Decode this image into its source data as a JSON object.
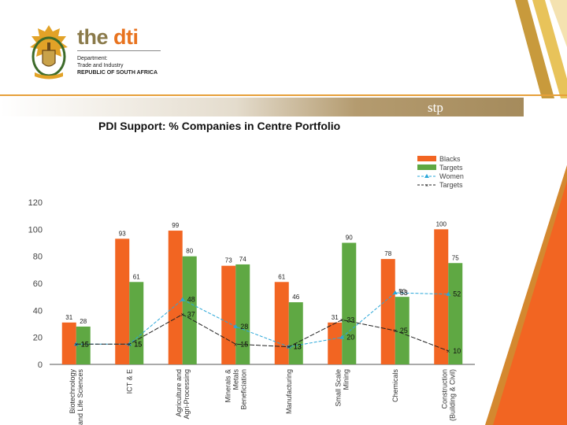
{
  "header": {
    "brand_prefix": "the ",
    "brand_accent": "dti",
    "sub_line1": "Department:",
    "sub_line2": "Trade and Industry",
    "sub_line3": "REPUBLIC OF SOUTH AFRICA",
    "banner_label": "stp"
  },
  "colors": {
    "blacks": "#f26522",
    "targets_bar": "#5fa843",
    "women": "#2aa7d9",
    "targets_line": "#222222",
    "accent_orange": "#f26522",
    "gold": "#c89a3c"
  },
  "chart_data": {
    "type": "bar",
    "title": "PDI Support: % Companies in Centre Portfolio",
    "xlabel": "",
    "ylabel": "",
    "ylim": [
      0,
      120
    ],
    "yticks": [
      0,
      20,
      40,
      60,
      80,
      100,
      120
    ],
    "categories": [
      [
        "Biotechnology",
        "and Life Sciences"
      ],
      [
        "ICT & E"
      ],
      [
        "Agriculture and",
        "Agri-Processing"
      ],
      [
        "Minerals &",
        "Metals",
        "Beneficiation"
      ],
      [
        "Manufacturing"
      ],
      [
        "Small Scale",
        "Mining"
      ],
      [
        "Chemicals"
      ],
      [
        "Construction",
        "(Building & Civil)"
      ]
    ],
    "series": [
      {
        "name": "Blacks",
        "kind": "bar",
        "values": [
          31,
          93,
          99,
          73,
          61,
          31,
          78,
          100
        ]
      },
      {
        "name": "Targets",
        "kind": "bar",
        "values": [
          28,
          61,
          80,
          74,
          46,
          90,
          50,
          75
        ]
      },
      {
        "name": "Women",
        "kind": "line",
        "values": [
          15,
          15,
          48,
          28,
          13,
          20,
          53,
          52
        ]
      },
      {
        "name": "Targets",
        "kind": "line",
        "values": [
          15,
          15,
          37,
          15,
          13,
          33,
          25,
          10
        ]
      }
    ],
    "legend_position": "top-right",
    "grid": false
  }
}
